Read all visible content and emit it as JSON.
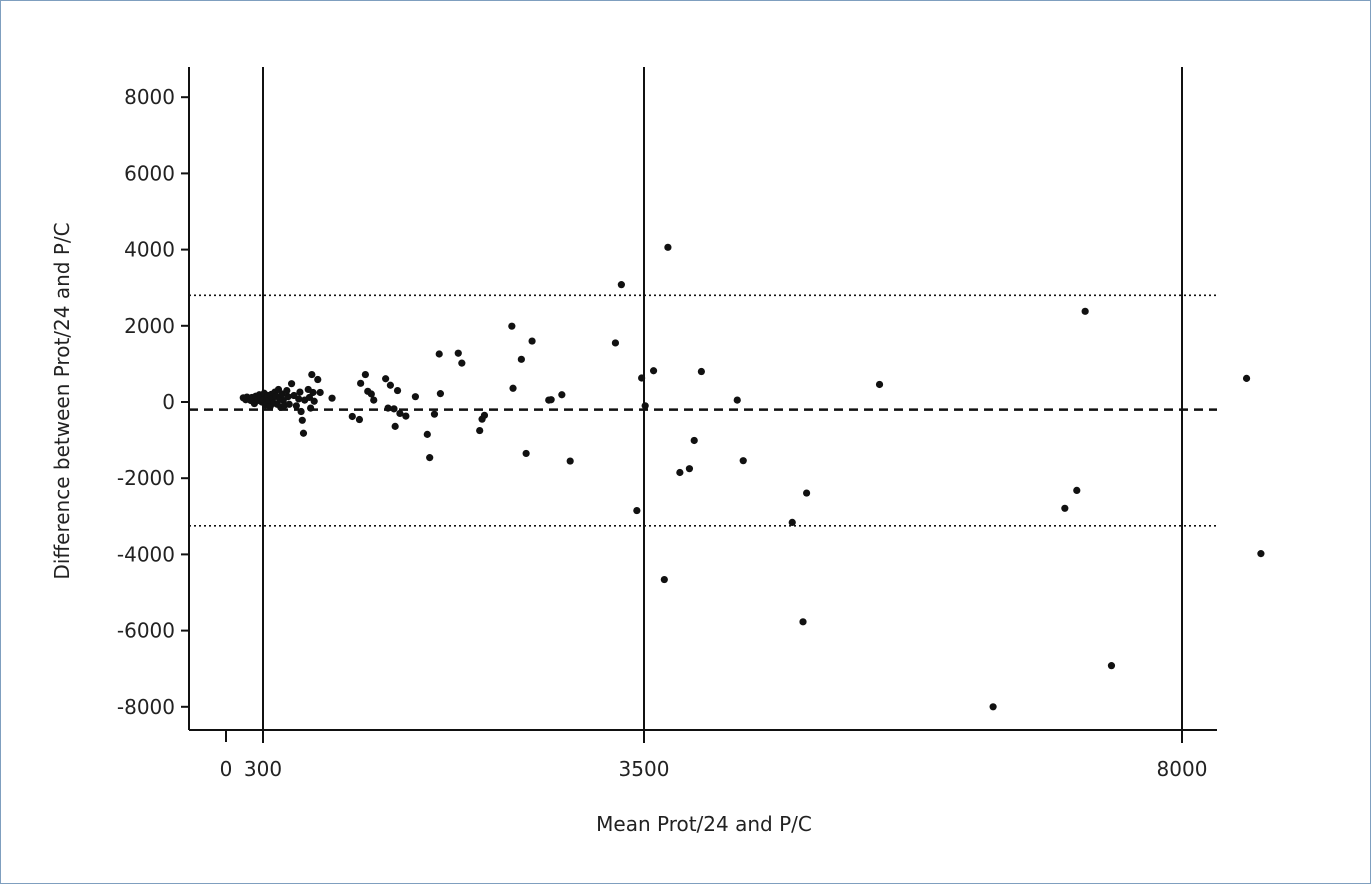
{
  "chart_data": {
    "type": "scatter",
    "title": "",
    "xlabel": "Mean Prot/24 and P/C",
    "ylabel": "Difference between Prot/24 and P/C",
    "xlim": [
      -300,
      8300
    ],
    "ylim": [
      -8600,
      8800
    ],
    "x_ticks": [
      0,
      300,
      3500,
      8000
    ],
    "y_ticks": [
      8000,
      6000,
      4000,
      2000,
      0,
      -2000,
      -4000,
      -6000,
      -8000
    ],
    "vertical_reference_lines": [
      300,
      3500,
      8000
    ],
    "mean_difference": -200,
    "limits_of_agreement": [
      2800,
      -3250
    ],
    "grid": false,
    "legend": "none",
    "colors": {
      "points": "#111111",
      "lines": "#111111"
    },
    "points": [
      [
        140,
        110
      ],
      [
        160,
        60
      ],
      [
        170,
        130
      ],
      [
        190,
        80
      ],
      [
        200,
        40
      ],
      [
        210,
        120
      ],
      [
        220,
        90
      ],
      [
        230,
        -40
      ],
      [
        240,
        150
      ],
      [
        250,
        30
      ],
      [
        260,
        70
      ],
      [
        270,
        190
      ],
      [
        280,
        110
      ],
      [
        290,
        0
      ],
      [
        300,
        60
      ],
      [
        310,
        230
      ],
      [
        320,
        -80
      ],
      [
        330,
        120
      ],
      [
        340,
        170
      ],
      [
        350,
        40
      ],
      [
        360,
        -120
      ],
      [
        370,
        200
      ],
      [
        380,
        90
      ],
      [
        390,
        -30
      ],
      [
        400,
        260
      ],
      [
        410,
        150
      ],
      [
        420,
        -60
      ],
      [
        430,
        330
      ],
      [
        440,
        80
      ],
      [
        450,
        -140
      ],
      [
        460,
        210
      ],
      [
        470,
        40
      ],
      [
        480,
        -90
      ],
      [
        500,
        300
      ],
      [
        510,
        140
      ],
      [
        520,
        -60
      ],
      [
        540,
        480
      ],
      [
        560,
        170
      ],
      [
        580,
        -100
      ],
      [
        600,
        80
      ],
      [
        610,
        260
      ],
      [
        620,
        -250
      ],
      [
        630,
        -480
      ],
      [
        640,
        -820
      ],
      [
        650,
        50
      ],
      [
        680,
        330
      ],
      [
        690,
        120
      ],
      [
        700,
        -160
      ],
      [
        710,
        720
      ],
      [
        720,
        250
      ],
      [
        730,
        20
      ],
      [
        760,
        590
      ],
      [
        780,
        250
      ],
      [
        880,
        100
      ],
      [
        1050,
        -380
      ],
      [
        1110,
        -460
      ],
      [
        1120,
        490
      ],
      [
        1160,
        720
      ],
      [
        1180,
        280
      ],
      [
        1210,
        210
      ],
      [
        1230,
        50
      ],
      [
        1330,
        610
      ],
      [
        1350,
        -160
      ],
      [
        1370,
        440
      ],
      [
        1400,
        -180
      ],
      [
        1410,
        -640
      ],
      [
        1430,
        300
      ],
      [
        1450,
        -300
      ],
      [
        1500,
        -370
      ],
      [
        1580,
        140
      ],
      [
        1680,
        -850
      ],
      [
        1700,
        -1460
      ],
      [
        1740,
        -320
      ],
      [
        1780,
        1260
      ],
      [
        1790,
        220
      ],
      [
        1940,
        1280
      ],
      [
        1970,
        1020
      ],
      [
        2120,
        -750
      ],
      [
        2140,
        -450
      ],
      [
        2160,
        -350
      ],
      [
        2390,
        1990
      ],
      [
        2400,
        360
      ],
      [
        2470,
        1120
      ],
      [
        2510,
        -1350
      ],
      [
        2560,
        1600
      ],
      [
        2700,
        50
      ],
      [
        2720,
        60
      ],
      [
        2810,
        190
      ],
      [
        2880,
        -1550
      ],
      [
        3260,
        1550
      ],
      [
        3310,
        3080
      ],
      [
        3440,
        -2850
      ],
      [
        3480,
        630
      ],
      [
        3510,
        -100
      ],
      [
        3580,
        820
      ],
      [
        3670,
        -4660
      ],
      [
        3700,
        4060
      ],
      [
        3800,
        -1850
      ],
      [
        3880,
        -1750
      ],
      [
        3920,
        -1010
      ],
      [
        3980,
        800
      ],
      [
        4280,
        50
      ],
      [
        4330,
        -1540
      ],
      [
        4740,
        -3160
      ],
      [
        4830,
        -5770
      ],
      [
        4860,
        -2390
      ],
      [
        5470,
        460
      ],
      [
        6420,
        -8000
      ],
      [
        7020,
        -2790
      ],
      [
        7120,
        -2320
      ],
      [
        7190,
        2380
      ],
      [
        7410,
        -6920
      ],
      [
        8540,
        620
      ],
      [
        8660,
        -3980
      ]
    ]
  }
}
